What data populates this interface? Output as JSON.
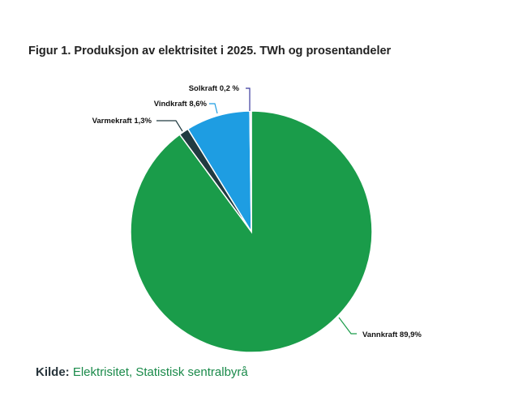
{
  "chart_data": {
    "type": "pie",
    "title": "Figur 1. Produksjon av elektrisitet i 2025. TWh og prosentandeler",
    "slices": [
      {
        "name": "Vannkraft",
        "value": 89.9,
        "label": "Vannkraft 89,9%",
        "color": "#1a9c4a"
      },
      {
        "name": "Varmekraft",
        "value": 1.3,
        "label": "Varmekraft 1,3%",
        "color": "#213b41"
      },
      {
        "name": "Vindkraft",
        "value": 8.6,
        "label": "Vindkraft 8,6%",
        "color": "#1e9de2"
      },
      {
        "name": "Solkraft",
        "value": 0.2,
        "label": "Solkraft 0,2 %",
        "color": "#c8c8e6",
        "line_color": "#3b3b9e"
      }
    ],
    "start": "top",
    "direction": "clockwise"
  },
  "source": {
    "prefix": "Kilde:",
    "text": "Elektrisitet, Statistisk sentralbyrå"
  }
}
